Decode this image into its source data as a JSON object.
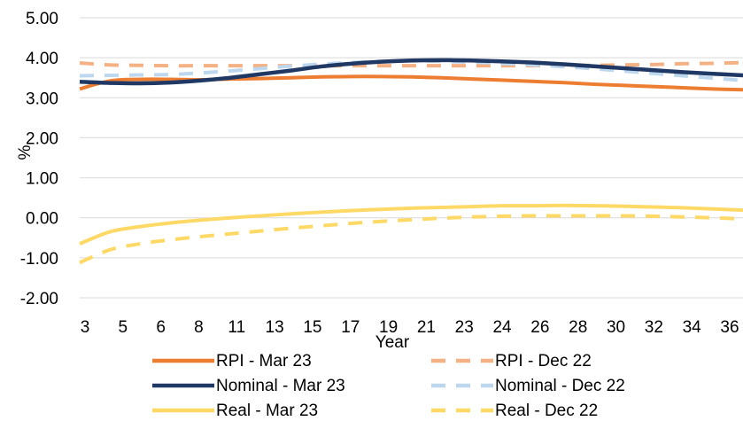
{
  "chart_data": {
    "type": "line",
    "xlabel": "Year",
    "ylabel": "%",
    "x_ticks": [
      "3",
      "5",
      "6",
      "8",
      "11",
      "13",
      "15",
      "17",
      "19",
      "21",
      "23",
      "24",
      "26",
      "28",
      "30",
      "32",
      "34",
      "36"
    ],
    "y_ticks": [
      "5.00",
      "4.00",
      "3.00",
      "2.00",
      "1.00",
      "0.00",
      "-1.00",
      "-2.00"
    ],
    "ylim": [
      -2,
      5
    ],
    "grid": true,
    "legend_position": "bottom",
    "series": [
      {
        "name": "RPI - Mar 23",
        "color": "#ED7D31",
        "dash": "solid",
        "values": [
          3.22,
          3.42,
          3.46,
          3.46,
          3.45,
          3.47,
          3.48,
          3.5,
          3.52,
          3.53,
          3.53,
          3.52,
          3.5,
          3.47,
          3.44,
          3.41,
          3.38,
          3.34,
          3.31,
          3.28,
          3.25,
          3.22,
          3.2
        ]
      },
      {
        "name": "RPI - Dec 22",
        "color": "#F4B183",
        "dash": "dashed",
        "values": [
          3.87,
          3.82,
          3.81,
          3.8,
          3.8,
          3.8,
          3.8,
          3.8,
          3.8,
          3.8,
          3.8,
          3.8,
          3.8,
          3.8,
          3.8,
          3.8,
          3.8,
          3.81,
          3.82,
          3.83,
          3.85,
          3.86,
          3.88
        ]
      },
      {
        "name": "Nominal - Mar 23",
        "color": "#1F3864",
        "dash": "solid",
        "values": [
          3.4,
          3.37,
          3.36,
          3.38,
          3.43,
          3.5,
          3.59,
          3.68,
          3.78,
          3.85,
          3.9,
          3.93,
          3.94,
          3.93,
          3.91,
          3.88,
          3.84,
          3.79,
          3.74,
          3.69,
          3.64,
          3.6,
          3.56
        ]
      },
      {
        "name": "Nominal - Dec 22",
        "color": "#BDD7EE",
        "dash": "dashed",
        "values": [
          3.55,
          3.56,
          3.57,
          3.58,
          3.62,
          3.67,
          3.73,
          3.79,
          3.84,
          3.88,
          3.91,
          3.92,
          3.91,
          3.89,
          3.86,
          3.82,
          3.78,
          3.73,
          3.67,
          3.61,
          3.55,
          3.49,
          3.43
        ]
      },
      {
        "name": "Real - Mar 23",
        "color": "#FFD966",
        "dash": "solid",
        "values": [
          -0.65,
          -0.35,
          -0.22,
          -0.13,
          -0.06,
          0.0,
          0.05,
          0.1,
          0.14,
          0.18,
          0.21,
          0.24,
          0.26,
          0.28,
          0.3,
          0.3,
          0.31,
          0.3,
          0.29,
          0.27,
          0.25,
          0.22,
          0.19
        ]
      },
      {
        "name": "Real - Dec 22",
        "color": "#FFD966",
        "dash": "dashed",
        "values": [
          -1.12,
          -0.8,
          -0.65,
          -0.55,
          -0.47,
          -0.4,
          -0.33,
          -0.26,
          -0.2,
          -0.14,
          -0.09,
          -0.05,
          -0.01,
          0.02,
          0.04,
          0.05,
          0.05,
          0.05,
          0.05,
          0.04,
          0.02,
          0.0,
          -0.03
        ]
      }
    ]
  }
}
